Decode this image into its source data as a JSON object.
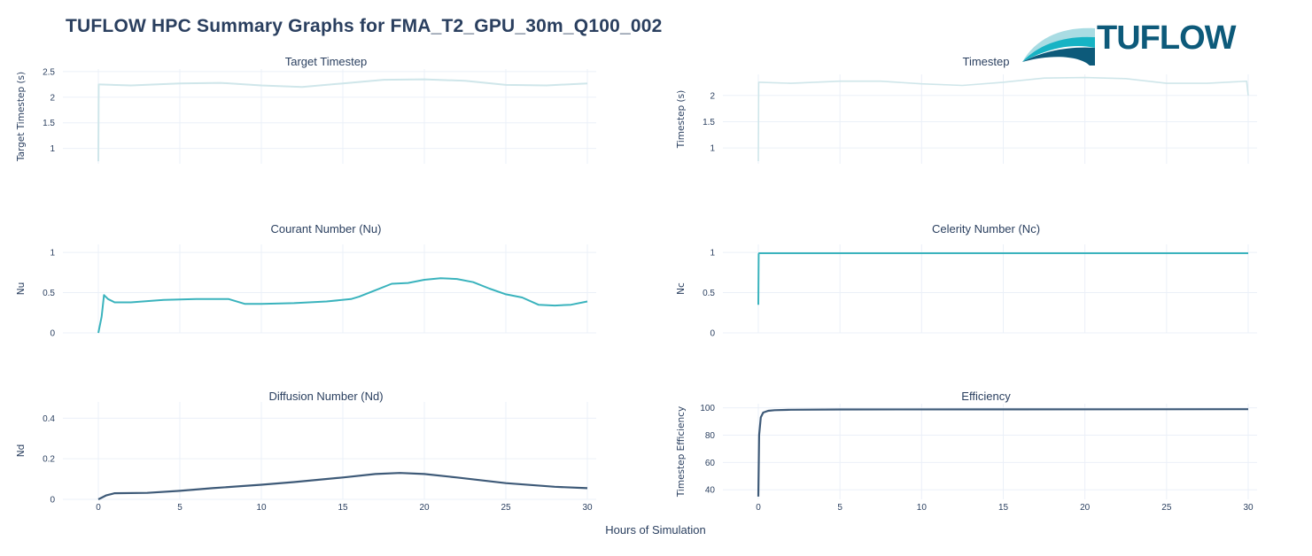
{
  "page": {
    "title": "TUFLOW HPC Summary Graphs for FMA_T2_GPU_30m_Q100_002",
    "logo_text": "TUFLOW",
    "shared_xlabel": "Hours of Simulation"
  },
  "colors": {
    "title": "#2a3f5f",
    "timestep_line": "#cfe6ea",
    "courant_line": "#3ab3bd",
    "celerity_line": "#3ab3bd",
    "diffusion_line": "#3e5a78",
    "efficiency_line": "#3e5a78",
    "grid": "#ebf0f8",
    "logo_dark": "#0d5a7a",
    "logo_teal": "#17b3c4",
    "logo_light": "#a9dce3"
  },
  "chart_data": [
    {
      "type": "line",
      "title": "Target Timestep",
      "xlabel": "",
      "ylabel": "Target Timestep (s)",
      "x_ticks": [
        0,
        5,
        10,
        15,
        20,
        25,
        30
      ],
      "y_ticks": [
        "1",
        "1.5",
        "2",
        "2.5"
      ],
      "xlim": [
        0,
        30
      ],
      "ylim": [
        0.7,
        2.55
      ],
      "x": [
        0,
        0.02,
        0.1,
        2,
        5,
        7.5,
        10,
        12.5,
        15,
        17.5,
        20,
        22.5,
        25,
        27.5,
        30
      ],
      "values": [
        0.75,
        2.25,
        2.25,
        2.23,
        2.27,
        2.28,
        2.23,
        2.2,
        2.27,
        2.34,
        2.35,
        2.32,
        2.24,
        2.23,
        2.27
      ]
    },
    {
      "type": "line",
      "title": "Timestep",
      "xlabel": "",
      "ylabel": "Timestep (s)",
      "x_ticks": [
        0,
        5,
        10,
        15,
        20,
        25,
        30
      ],
      "y_ticks": [
        "1",
        "1.5",
        "2"
      ],
      "xlim": [
        0,
        30
      ],
      "ylim": [
        0.7,
        2.4
      ],
      "x": [
        0,
        0.02,
        0.1,
        2,
        5,
        7.5,
        10,
        12.5,
        15,
        17.5,
        20,
        22.5,
        25,
        27.5,
        29.9,
        30
      ],
      "values": [
        0.75,
        2.25,
        2.25,
        2.23,
        2.27,
        2.27,
        2.22,
        2.19,
        2.25,
        2.33,
        2.34,
        2.32,
        2.23,
        2.23,
        2.27,
        2.0
      ]
    },
    {
      "type": "line",
      "title": "Courant Number (Nu)",
      "xlabel": "",
      "ylabel": "Nu",
      "x_ticks": [
        0,
        5,
        10,
        15,
        20,
        25,
        30
      ],
      "y_ticks": [
        "0",
        "0.5",
        "1"
      ],
      "xlim": [
        0,
        30
      ],
      "ylim": [
        0,
        1.1
      ],
      "x": [
        0,
        0.2,
        0.35,
        0.6,
        1,
        2,
        4,
        6,
        8,
        9,
        10,
        12,
        14,
        15.5,
        16,
        17,
        18,
        19,
        20,
        21,
        22,
        23,
        24,
        25,
        26,
        27,
        28,
        29,
        30
      ],
      "values": [
        0,
        0.2,
        0.47,
        0.42,
        0.38,
        0.38,
        0.41,
        0.42,
        0.42,
        0.36,
        0.36,
        0.37,
        0.39,
        0.42,
        0.45,
        0.53,
        0.61,
        0.62,
        0.66,
        0.68,
        0.67,
        0.63,
        0.55,
        0.48,
        0.44,
        0.35,
        0.34,
        0.35,
        0.39
      ]
    },
    {
      "type": "line",
      "title": "Celerity Number (Nc)",
      "xlabel": "",
      "ylabel": "Nc",
      "x_ticks": [
        0,
        5,
        10,
        15,
        20,
        25,
        30
      ],
      "y_ticks": [
        "0",
        "0.5",
        "1"
      ],
      "xlim": [
        0,
        30
      ],
      "ylim": [
        0,
        1.1
      ],
      "x": [
        0,
        0.02,
        0.05,
        30
      ],
      "values": [
        0.35,
        0.98,
        0.99,
        0.99
      ]
    },
    {
      "type": "line",
      "title": "Diffusion Number (Nd)",
      "xlabel": "Hours of Simulation",
      "ylabel": "Nd",
      "x_ticks": [
        0,
        5,
        10,
        15,
        20,
        25,
        30
      ],
      "y_ticks": [
        "0",
        "0.2",
        "0.4"
      ],
      "xlim": [
        0,
        30
      ],
      "ylim": [
        0,
        0.48
      ],
      "x": [
        0,
        0.5,
        1,
        3,
        5,
        7,
        10,
        12,
        15,
        17,
        18.5,
        20,
        22,
        25,
        28,
        30
      ],
      "values": [
        0,
        0.02,
        0.03,
        0.032,
        0.042,
        0.055,
        0.072,
        0.085,
        0.108,
        0.125,
        0.13,
        0.125,
        0.108,
        0.08,
        0.062,
        0.055
      ]
    },
    {
      "type": "line",
      "title": "Efficiency",
      "xlabel": "Hours of Simulation",
      "ylabel": "Timestep Efficiency",
      "x_ticks": [
        0,
        5,
        10,
        15,
        20,
        25,
        30
      ],
      "y_ticks": [
        "40",
        "60",
        "80",
        "100"
      ],
      "xlim": [
        0,
        30
      ],
      "ylim": [
        33,
        103
      ],
      "x": [
        0,
        0.05,
        0.15,
        0.3,
        0.6,
        1,
        2,
        5,
        30
      ],
      "values": [
        35,
        80,
        93,
        96.5,
        97.8,
        98.3,
        98.6,
        98.8,
        99
      ]
    }
  ],
  "x_tick_labels": [
    "0",
    "5",
    "10",
    "15",
    "20",
    "25",
    "30"
  ]
}
